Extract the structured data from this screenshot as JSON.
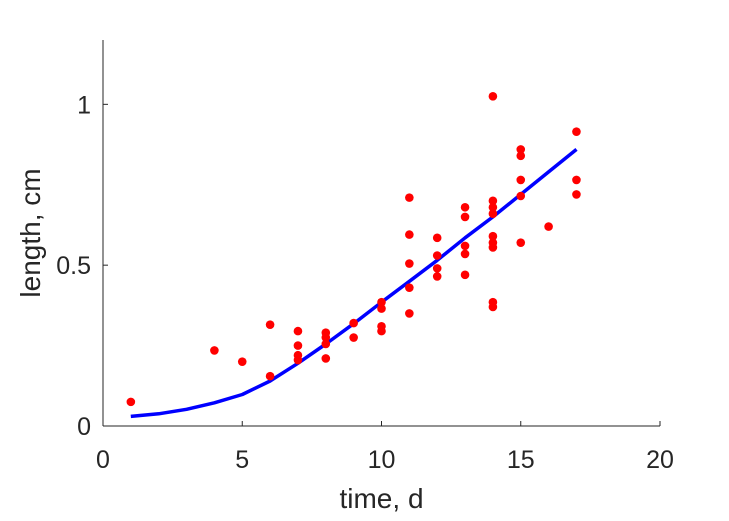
{
  "chart_data": {
    "type": "scatter",
    "title": "",
    "xlabel": "time, d",
    "ylabel": "length, cm",
    "xlim": [
      0,
      20
    ],
    "ylim": [
      0,
      1.2
    ],
    "xticks": [
      "0",
      "5",
      "10",
      "15",
      "20"
    ],
    "yticks": [
      "0",
      "0.5",
      "1"
    ],
    "xtick_values": [
      0,
      5,
      10,
      15,
      20
    ],
    "ytick_values": [
      0,
      0.5,
      1
    ],
    "grid": false,
    "legend": "none",
    "series": [
      {
        "kind": "scatter",
        "color": "#ff0000",
        "points": [
          [
            1,
            0.075
          ],
          [
            4,
            0.235
          ],
          [
            5,
            0.2
          ],
          [
            6,
            0.315
          ],
          [
            6,
            0.155
          ],
          [
            7,
            0.295
          ],
          [
            7,
            0.25
          ],
          [
            7,
            0.22
          ],
          [
            7,
            0.205
          ],
          [
            8,
            0.29
          ],
          [
            8,
            0.275
          ],
          [
            8,
            0.255
          ],
          [
            8,
            0.21
          ],
          [
            9,
            0.275
          ],
          [
            9,
            0.32
          ],
          [
            10,
            0.385
          ],
          [
            10,
            0.365
          ],
          [
            10,
            0.31
          ],
          [
            10,
            0.295
          ],
          [
            11,
            0.71
          ],
          [
            11,
            0.595
          ],
          [
            11,
            0.505
          ],
          [
            11,
            0.43
          ],
          [
            11,
            0.35
          ],
          [
            12,
            0.585
          ],
          [
            12,
            0.53
          ],
          [
            12,
            0.49
          ],
          [
            12,
            0.465
          ],
          [
            13,
            0.68
          ],
          [
            13,
            0.65
          ],
          [
            13,
            0.56
          ],
          [
            13,
            0.535
          ],
          [
            13,
            0.47
          ],
          [
            14,
            1.025
          ],
          [
            14,
            0.7
          ],
          [
            14,
            0.68
          ],
          [
            14,
            0.66
          ],
          [
            14,
            0.59
          ],
          [
            14,
            0.57
          ],
          [
            14,
            0.555
          ],
          [
            14,
            0.385
          ],
          [
            14,
            0.37
          ],
          [
            15,
            0.86
          ],
          [
            15,
            0.84
          ],
          [
            15,
            0.765
          ],
          [
            15,
            0.715
          ],
          [
            15,
            0.57
          ],
          [
            16,
            0.62
          ],
          [
            17,
            0.915
          ],
          [
            17,
            0.765
          ],
          [
            17,
            0.72
          ]
        ]
      },
      {
        "kind": "line",
        "color": "#0000ff",
        "x": [
          1,
          2,
          3,
          4,
          5,
          6,
          7,
          8,
          9,
          10,
          11,
          12,
          13,
          14,
          15,
          16,
          17
        ],
        "y": [
          0.03,
          0.038,
          0.052,
          0.072,
          0.098,
          0.14,
          0.195,
          0.255,
          0.318,
          0.385,
          0.45,
          0.515,
          0.585,
          0.65,
          0.72,
          0.79,
          0.86
        ]
      }
    ]
  }
}
